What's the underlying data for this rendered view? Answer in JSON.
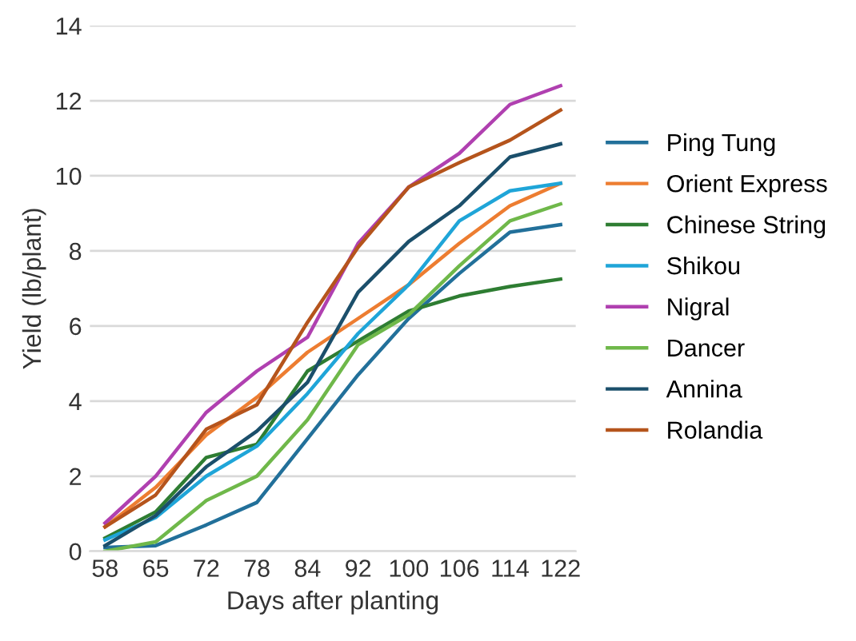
{
  "chart_data": {
    "type": "line",
    "xlabel": "Days after planting",
    "ylabel": "Yield (lb/plant)",
    "categories": [
      "58",
      "65",
      "72",
      "78",
      "84",
      "92",
      "100",
      "106",
      "114",
      "122"
    ],
    "series": [
      {
        "name": "Ping Tung",
        "color": "#22709a",
        "values": [
          0.1,
          0.15,
          0.7,
          1.3,
          3.0,
          4.7,
          6.2,
          7.4,
          8.5,
          8.7
        ]
      },
      {
        "name": "Orient Express",
        "color": "#ed7d31",
        "values": [
          0.65,
          1.7,
          3.1,
          4.1,
          5.3,
          6.2,
          7.1,
          8.2,
          9.2,
          9.8
        ]
      },
      {
        "name": "Chinese String",
        "color": "#2e7d32",
        "values": [
          0.35,
          1.05,
          2.5,
          2.85,
          4.8,
          5.6,
          6.4,
          6.8,
          7.05,
          7.25
        ]
      },
      {
        "name": "Shikou",
        "color": "#1fa5d8",
        "values": [
          0.3,
          0.9,
          2.0,
          2.8,
          4.2,
          5.8,
          7.1,
          8.8,
          9.6,
          9.8
        ]
      },
      {
        "name": "Nigral",
        "color": "#b040b0",
        "values": [
          0.75,
          2.0,
          3.7,
          4.8,
          5.7,
          8.2,
          9.7,
          10.6,
          11.9,
          12.4
        ]
      },
      {
        "name": "Dancer",
        "color": "#6fb84a",
        "values": [
          0.0,
          0.25,
          1.35,
          2.0,
          3.5,
          5.5,
          6.3,
          7.6,
          8.8,
          9.25
        ]
      },
      {
        "name": "Annina",
        "color": "#1b4f6b",
        "values": [
          0.15,
          0.95,
          2.25,
          3.2,
          4.5,
          6.9,
          8.25,
          9.2,
          10.5,
          10.85
        ]
      },
      {
        "name": "Rolandia",
        "color": "#b5541c",
        "values": [
          0.65,
          1.5,
          3.25,
          3.9,
          6.1,
          8.1,
          9.7,
          10.35,
          10.95,
          11.75
        ]
      }
    ],
    "ylim": [
      0,
      14
    ],
    "yticks": [
      0,
      2,
      4,
      6,
      8,
      10,
      12,
      14
    ],
    "grid": "y",
    "legend": "right",
    "marker": "none",
    "line_style": "solid"
  }
}
